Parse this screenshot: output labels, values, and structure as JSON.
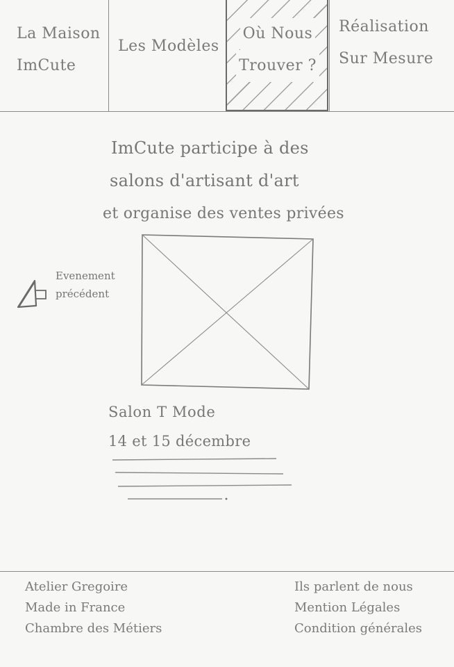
{
  "nav": {
    "items": [
      {
        "line1": "La Maison",
        "line2": "ImCute"
      },
      {
        "line1": "Les Modèles",
        "line2": ""
      },
      {
        "line1": "Où Nous",
        "line2": "Trouver ?"
      },
      {
        "line1": "Réalisation",
        "line2": "Sur Mesure"
      }
    ],
    "active_index": 2
  },
  "intro": {
    "line1": "ImCute participe à des",
    "line2": "salons d'artisant d'art",
    "line3": "et organise des ventes privées"
  },
  "prev_event": {
    "line1": "Evenement",
    "line2": "précédent"
  },
  "event": {
    "title": "Salon T Mode",
    "date": "14 et 15 décembre"
  },
  "footer": {
    "left": [
      "Atelier Gregoire",
      "Made in France",
      "Chambre des Métiers"
    ],
    "right": [
      "Ils parlent de nous",
      "Mention Légales",
      "Condition générales"
    ]
  }
}
